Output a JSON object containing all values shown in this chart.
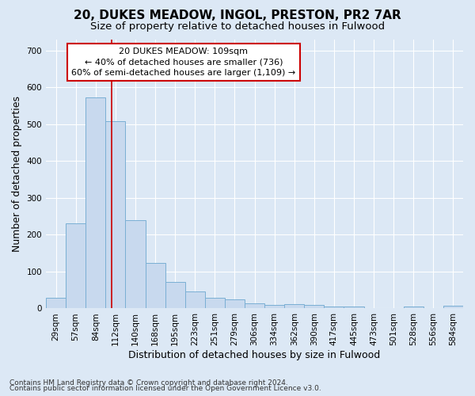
{
  "title": "20, DUKES MEADOW, INGOL, PRESTON, PR2 7AR",
  "subtitle": "Size of property relative to detached houses in Fulwood",
  "xlabel": "Distribution of detached houses by size in Fulwood",
  "ylabel": "Number of detached properties",
  "categories": [
    "29sqm",
    "57sqm",
    "84sqm",
    "112sqm",
    "140sqm",
    "168sqm",
    "195sqm",
    "223sqm",
    "251sqm",
    "279sqm",
    "306sqm",
    "334sqm",
    "362sqm",
    "390sqm",
    "417sqm",
    "445sqm",
    "473sqm",
    "501sqm",
    "528sqm",
    "556sqm",
    "584sqm"
  ],
  "values": [
    28,
    232,
    574,
    508,
    240,
    124,
    71,
    46,
    28,
    25,
    13,
    10,
    12,
    10,
    5,
    5,
    0,
    0,
    5,
    0,
    7
  ],
  "bar_color": "#c8d9ee",
  "bar_edge_color": "#7aafd4",
  "vline_color": "#cc0000",
  "vline_x": 2.82,
  "annotation_text": "20 DUKES MEADOW: 109sqm\n← 40% of detached houses are smaller (736)\n60% of semi-detached houses are larger (1,109) →",
  "annotation_box_facecolor": "#ffffff",
  "annotation_box_edgecolor": "#cc0000",
  "bg_color": "#dce8f5",
  "grid_color": "#ffffff",
  "ylim": [
    0,
    730
  ],
  "yticks": [
    0,
    100,
    200,
    300,
    400,
    500,
    600,
    700
  ],
  "footnote1": "Contains HM Land Registry data © Crown copyright and database right 2024.",
  "footnote2": "Contains public sector information licensed under the Open Government Licence v3.0.",
  "title_fontsize": 11,
  "subtitle_fontsize": 9.5,
  "ylabel_fontsize": 9,
  "xlabel_fontsize": 9,
  "tick_fontsize": 7.5,
  "annot_fontsize": 8,
  "footnote_fontsize": 6.5
}
